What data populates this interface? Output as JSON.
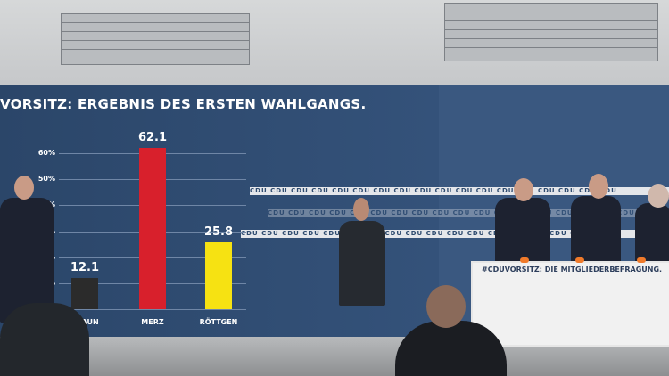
{
  "screen_title": "VORSITZ: ERGEBNIS DES ERSTEN WAHLGANGS.",
  "strip_text": "CDU  CDU  CDU  CDU  CDU  CDU  CDU  CDU  CDU  CDU  CDU  CDU  CDU  CDU  CDU  CDU  CDU  CDU",
  "podium_text": "#CDUVORSITZ: DIE MITGLIEDERBEFRAGUNG.",
  "colors": {
    "screen": "#2d4a6e",
    "braun": "#2b2b2b",
    "merz": "#d8202c",
    "roettgen": "#f6e212"
  },
  "chart_data": {
    "type": "bar",
    "title": "VORSITZ: ERGEBNIS DES ERSTEN WAHLGANGS.",
    "categories": [
      "BRAUN",
      "MERZ",
      "RÖTTGEN"
    ],
    "values": [
      12.1,
      62.1,
      25.8
    ],
    "value_labels": [
      "12.1",
      "62.1",
      "25.8"
    ],
    "yticks": [
      "10%",
      "20%",
      "30%",
      "40%",
      "50%",
      "60%"
    ],
    "ylim": [
      0,
      60
    ],
    "grid": true
  }
}
